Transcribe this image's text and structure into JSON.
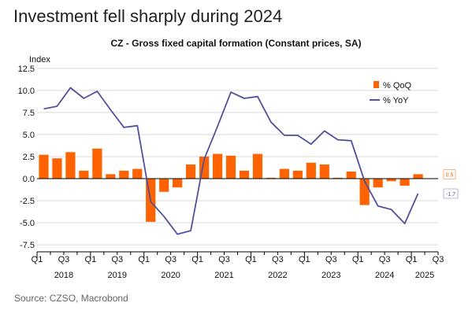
{
  "headline": "Investment fell sharply during 2024",
  "source": "Source: CZSO, Macrobond",
  "colors": {
    "bar": "#FF6200",
    "line": "#525199",
    "grid": "#d9d9d9",
    "axis": "#000000"
  },
  "chart_data": {
    "type": "bar",
    "title": "CZ - Gross fixed capital formation (Constant prices, SA)",
    "ylabel": "Index",
    "ylim": [
      -8.3,
      13.2
    ],
    "yticks": [
      12.5,
      10.0,
      7.5,
      5.0,
      2.5,
      0.0,
      -2.5,
      -5.0,
      -7.5
    ],
    "ytick_labels": [
      "12.5",
      "10.0",
      "7.5",
      "5.0",
      "2.5",
      "0.0",
      "-2.5",
      "-5.0",
      "-7.5"
    ],
    "grid": true,
    "legend": "top-right",
    "quarter_ticks": [
      "Q1",
      "Q3",
      "Q1",
      "Q3",
      "Q1",
      "Q3",
      "Q1",
      "Q3",
      "Q1",
      "Q3",
      "Q1",
      "Q3",
      "Q1",
      "Q3",
      "Q1",
      "Q3"
    ],
    "years": [
      "2018",
      "2019",
      "2020",
      "2021",
      "2022",
      "2023",
      "2024",
      "2025"
    ],
    "categories": [
      "2018 Q1",
      "2018 Q2",
      "2018 Q3",
      "2018 Q4",
      "2019 Q1",
      "2019 Q2",
      "2019 Q3",
      "2019 Q4",
      "2020 Q1",
      "2020 Q2",
      "2020 Q3",
      "2020 Q4",
      "2021 Q1",
      "2021 Q2",
      "2021 Q3",
      "2021 Q4",
      "2022 Q1",
      "2022 Q2",
      "2022 Q3",
      "2022 Q4",
      "2023 Q1",
      "2023 Q2",
      "2023 Q3",
      "2023 Q4",
      "2024 Q1",
      "2024 Q2",
      "2024 Q3",
      "2024 Q4",
      "2025 Q1",
      "2025 Q2"
    ],
    "series": [
      {
        "name": "% QoQ",
        "kind": "bar",
        "values": [
          2.7,
          2.3,
          3.0,
          0.9,
          3.4,
          0.5,
          0.9,
          1.1,
          -4.9,
          -1.5,
          -1.0,
          1.6,
          2.5,
          2.8,
          2.6,
          0.9,
          2.8,
          0.1,
          1.1,
          0.9,
          1.8,
          1.6,
          0.1,
          0.8,
          -3.0,
          -1.0,
          -0.3,
          -0.8,
          0.5,
          null
        ]
      },
      {
        "name": "% YoY",
        "kind": "line",
        "values": [
          7.9,
          8.2,
          10.3,
          9.1,
          9.9,
          7.8,
          5.8,
          6.0,
          -2.6,
          -4.3,
          -6.3,
          -5.9,
          2.2,
          5.9,
          9.8,
          9.1,
          9.3,
          6.4,
          4.9,
          4.9,
          3.9,
          5.4,
          4.4,
          4.3,
          -0.3,
          -3.1,
          -3.5,
          -5.1,
          -1.7,
          null
        ]
      }
    ],
    "end_labels": {
      "qoq": "0.5",
      "yoy": "-1.7"
    }
  }
}
